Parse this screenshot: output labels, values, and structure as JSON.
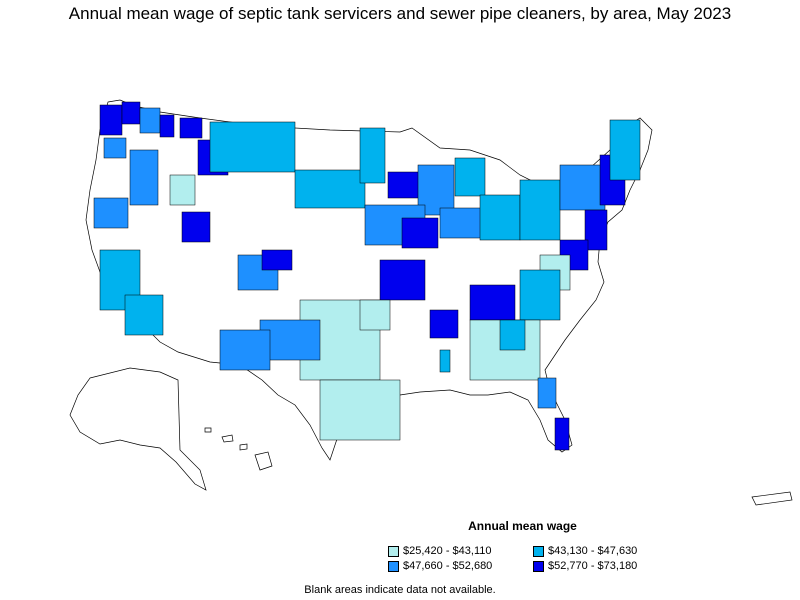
{
  "title": "Annual mean wage of septic tank servicers and sewer pipe cleaners, by area, May 2023",
  "legend": {
    "title": "Annual mean wage",
    "items": [
      {
        "label": "$25,420 - $43,110",
        "color": "#b2eeee"
      },
      {
        "label": "$43,130 - $47,630",
        "color": "#00b2ee"
      },
      {
        "label": "$47,660 - $52,680",
        "color": "#1e90ff"
      },
      {
        "label": "$52,770 - $73,180",
        "color": "#0000ee"
      }
    ]
  },
  "note": "Blank areas indicate data not available.",
  "colors": {
    "no_data": "#ffffff",
    "border": "#000000"
  }
}
